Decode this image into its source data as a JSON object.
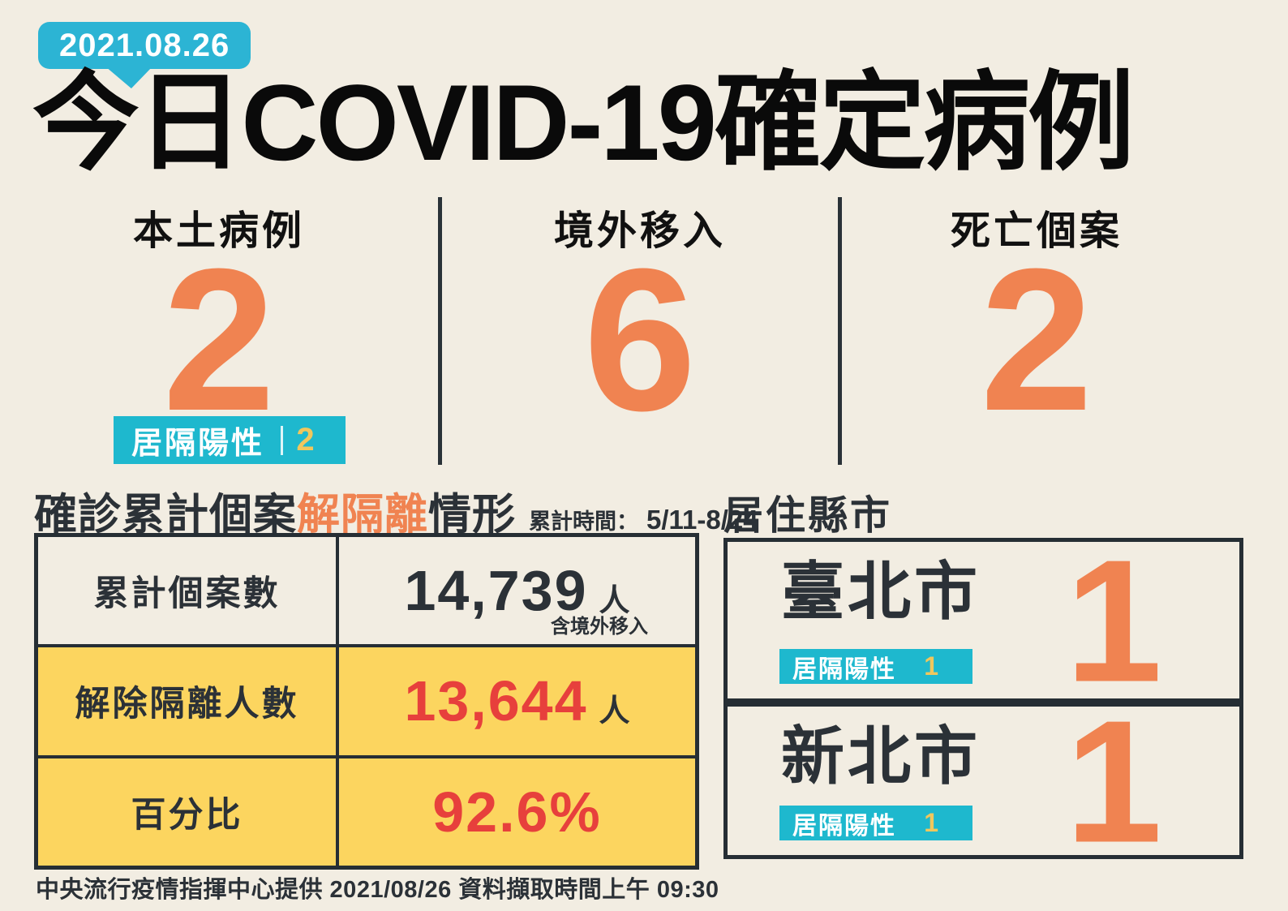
{
  "ui": {
    "date_badge": "2021.08.26",
    "title": "今日COVID-19確定病例",
    "summary": {
      "columns": [
        {
          "label": "本土病例",
          "value": "2"
        },
        {
          "label": "境外移入",
          "value": "6"
        },
        {
          "label": "死亡個案",
          "value": "2"
        }
      ],
      "local_badge": {
        "label": "居隔陽性",
        "value": "2"
      }
    },
    "iso": {
      "title_part1": "確診累計個案",
      "title_orange": "解隔離",
      "title_part2": "情形",
      "period_label": "累計時間：",
      "period_value": "5/11-8/24",
      "rows": [
        {
          "label": "累計個案數",
          "value": "14,739",
          "unit": "人",
          "note": "含境外移入"
        },
        {
          "label": "解除隔離人數",
          "value": "13,644",
          "unit": "人"
        },
        {
          "label": "百分比",
          "value": "92.6%"
        }
      ]
    },
    "residence": {
      "title": "居住縣市",
      "cities": [
        {
          "name": "臺北市",
          "badge_label": "居隔陽性",
          "badge_value": "1",
          "count": "1"
        },
        {
          "name": "新北市",
          "badge_label": "居隔陽性",
          "badge_value": "1",
          "count": "1"
        }
      ]
    },
    "footer": "中央流行疫情指揮中心提供 2021/08/26 資料擷取時間上午 09:30"
  },
  "colors": {
    "background": "#F2EDE2",
    "title_black": "#0A0A0A",
    "orange_accent": "#F08351",
    "cyan_badge": "#1EB8CE",
    "cyan_date_badge": "#2CB4D4",
    "yellow_row": "#FCD55F",
    "yellow_badge_number": "#F0C75D",
    "red_number": "#E7403C",
    "dark_navy_text": "#2B3137",
    "table_border": "#262E34"
  },
  "chart_data": {
    "type": "table",
    "title": "今日COVID-19確定病例",
    "date": "2021.08.26",
    "daily_cases": {
      "categories": [
        "本土病例",
        "境外移入",
        "死亡個案"
      ],
      "values": [
        2,
        6,
        2
      ],
      "本土居隔陽性": 2
    },
    "isolation_summary": {
      "period": "5/11-8/24",
      "累計個案數": 14739,
      "累計個案數_note": "含境外移入",
      "解除隔離人數": 13644,
      "百分比": "92.6%"
    },
    "residence": [
      {
        "city": "臺北市",
        "count": 1,
        "居隔陽性": 1
      },
      {
        "city": "新北市",
        "count": 1,
        "居隔陽性": 1
      }
    ],
    "source": "中央流行疫情指揮中心",
    "retrieved": "2021/08/26 上午 09:30"
  }
}
